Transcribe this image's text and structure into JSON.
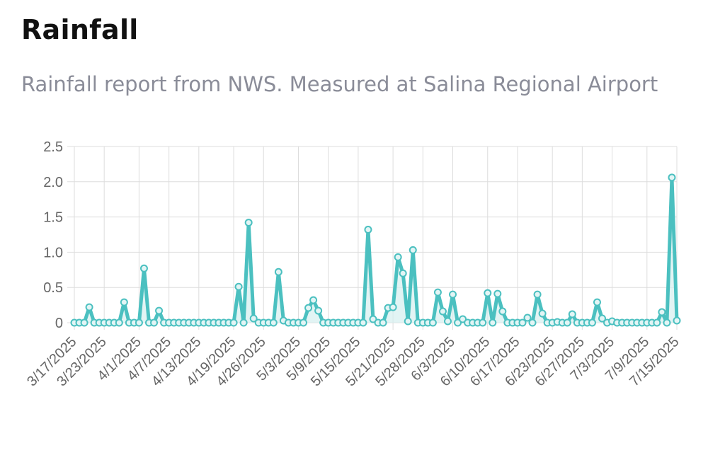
{
  "header": {
    "title": "Rainfall",
    "subtitle": "Rainfall report from NWS. Measured at Salina Regional Airport"
  },
  "colors": {
    "series": "#4bc0c0",
    "fill": "#d6f0f0",
    "grid": "#dddddd"
  },
  "chart_data": {
    "type": "line",
    "title": "",
    "xlabel": "",
    "ylabel": "",
    "ylim": [
      0,
      2.5
    ],
    "yticks": [
      "0",
      "0.5",
      "1.0",
      "1.5",
      "2.0",
      "2.5"
    ],
    "x_tick_labels": [
      "3/17/2025",
      "3/23/2025",
      "4/1/2025",
      "4/7/2025",
      "4/13/2025",
      "4/19/2025",
      "4/26/2025",
      "5/3/2025",
      "5/9/2025",
      "5/15/2025",
      "5/21/2025",
      "5/28/2025",
      "6/3/2025",
      "6/10/2025",
      "6/17/2025",
      "6/23/2025",
      "6/27/2025",
      "7/3/2025",
      "7/9/2025",
      "7/15/2025"
    ],
    "series": [
      {
        "values": [
          0,
          0,
          0,
          0.22,
          0,
          0,
          0,
          0,
          0,
          0,
          0.29,
          0,
          0,
          0,
          0.77,
          0,
          0,
          0.17,
          0,
          0,
          0,
          0,
          0,
          0,
          0,
          0,
          0,
          0,
          0,
          0,
          0,
          0,
          0,
          0.51,
          0,
          1.42,
          0.06,
          0,
          0,
          0,
          0,
          0.72,
          0.03,
          0,
          0,
          0,
          0,
          0.21,
          0.32,
          0.17,
          0,
          0,
          0,
          0,
          0,
          0,
          0,
          0,
          0,
          1.32,
          0.05,
          0,
          0,
          0.21,
          0.22,
          0.93,
          0.7,
          0.02,
          1.03,
          0,
          0,
          0,
          0,
          0.43,
          0.16,
          0.02,
          0.4,
          0,
          0.05,
          0,
          0,
          0,
          0,
          0.42,
          0,
          0.41,
          0.16,
          0,
          0,
          0,
          0,
          0.07,
          0,
          0.4,
          0.13,
          0,
          0,
          0.01,
          0,
          0,
          0.12,
          0,
          0,
          0,
          0,
          0.29,
          0.06,
          0,
          0.02,
          0,
          0,
          0,
          0,
          0,
          0,
          0,
          0,
          0,
          0.15,
          0,
          2.06,
          0.03
        ]
      }
    ]
  }
}
